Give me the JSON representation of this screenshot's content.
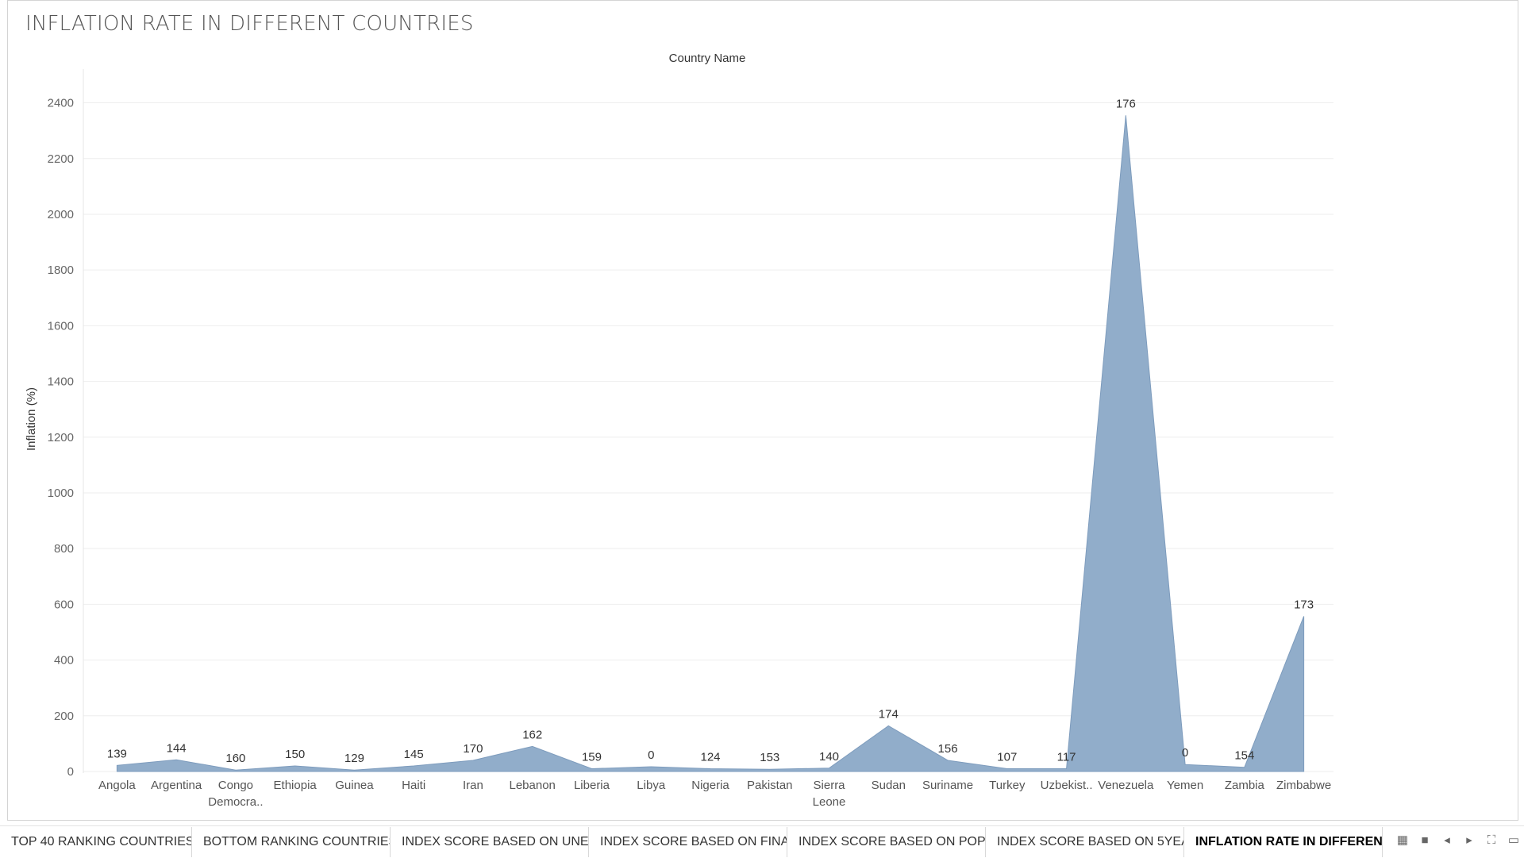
{
  "dashboard": {
    "title": "INFLATION RATE IN DIFFERENT COUNTRIES"
  },
  "chart_data": {
    "type": "area",
    "title": "INFLATION RATE IN DIFFERENT COUNTRIES",
    "column_header": "Country Name",
    "xlabel": "",
    "ylabel": "Inflation (%)",
    "ylim": [
      0,
      2450
    ],
    "yticks": [
      0,
      200,
      400,
      600,
      800,
      1000,
      1200,
      1400,
      1600,
      1800,
      2000,
      2200,
      2400
    ],
    "grid": true,
    "color": "#8fabc9",
    "categories": [
      "Angola",
      "Argentina",
      "Congo Democra..",
      "Ethiopia",
      "Guinea",
      "Haiti",
      "Iran",
      "Lebanon",
      "Liberia",
      "Libya",
      "Nigeria",
      "Pakistan",
      "Sierra Leone",
      "Sudan",
      "Suriname",
      "Turkey",
      "Uzbekist..",
      "Venezuela",
      "Yemen",
      "Zambia",
      "Zimbabwe"
    ],
    "values": [
      22,
      42,
      5,
      20,
      5,
      20,
      40,
      90,
      10,
      17,
      10,
      8,
      12,
      164,
      40,
      10,
      10,
      2355,
      25,
      15,
      557
    ],
    "labels": [
      "139",
      "144",
      "160",
      "150",
      "129",
      "145",
      "170",
      "162",
      "159",
      "0",
      "124",
      "153",
      "140",
      "174",
      "156",
      "107",
      "117",
      "176",
      "0",
      "154",
      "173"
    ]
  },
  "tabs": [
    {
      "label": "TOP 40 RANKING COUNTRIES",
      "active": false
    },
    {
      "label": "BOTTOM RANKING COUNTRIES",
      "active": false
    },
    {
      "label": "INDEX SCORE BASED ON UNE...",
      "active": false
    },
    {
      "label": "INDEX SCORE BASED ON  FINA...",
      "active": false
    },
    {
      "label": "INDEX SCORE BASED ON POPU...",
      "active": false
    },
    {
      "label": "INDEX SCORE BASED ON 5YEA...",
      "active": false
    },
    {
      "label": "INFLATION RATE IN DIFFEREN...",
      "active": true
    }
  ],
  "tab_tools": [
    "grid-view-icon",
    "sheet-icon",
    "prev-arrow-icon",
    "next-arrow-icon",
    "fullscreen-icon",
    "present-icon"
  ]
}
